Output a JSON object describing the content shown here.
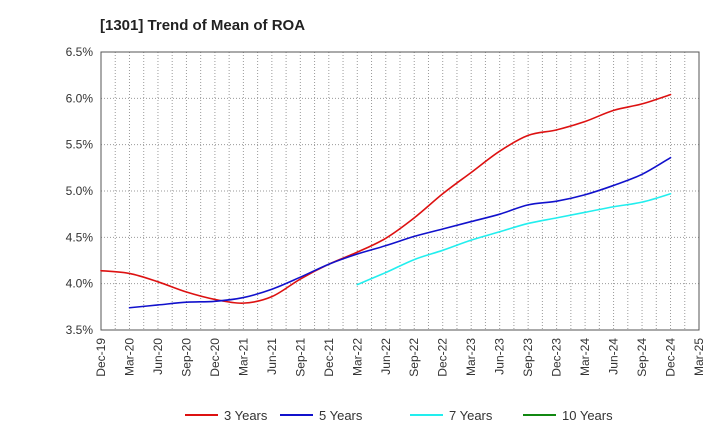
{
  "chart_data": {
    "type": "line",
    "title": "[1301]  Trend of Mean of ROA",
    "xlabel": "",
    "ylabel": "",
    "ylim": [
      3.5,
      6.5
    ],
    "ytick_values": [
      3.5,
      4.0,
      4.5,
      5.0,
      5.5,
      6.0,
      6.5
    ],
    "ytick_labels": [
      "3.5%",
      "4.0%",
      "4.5%",
      "5.0%",
      "5.5%",
      "6.0%",
      "6.5%"
    ],
    "xtick_labels": [
      "Dec-19",
      "Mar-20",
      "Jun-20",
      "Sep-20",
      "Dec-20",
      "Mar-21",
      "Jun-21",
      "Sep-21",
      "Dec-21",
      "Mar-22",
      "Jun-22",
      "Sep-22",
      "Dec-22",
      "Mar-23",
      "Jun-23",
      "Sep-23",
      "Dec-23",
      "Mar-24",
      "Jun-24",
      "Sep-24",
      "Dec-24",
      "Mar-25"
    ],
    "grid": true,
    "legend_position": "bottom",
    "series": [
      {
        "name": "3 Years",
        "color": "#dd1111",
        "start_index": 0,
        "values": [
          4.14,
          4.11,
          4.02,
          3.91,
          3.83,
          3.79,
          3.86,
          4.05,
          4.21,
          4.34,
          4.49,
          4.71,
          4.97,
          5.2,
          5.43,
          5.6,
          5.66,
          5.75,
          5.87,
          5.94,
          6.04
        ]
      },
      {
        "name": "5 Years",
        "color": "#1111cc",
        "start_index": 1,
        "values": [
          3.74,
          3.77,
          3.8,
          3.81,
          3.85,
          3.94,
          4.07,
          4.21,
          4.32,
          4.41,
          4.51,
          4.59,
          4.67,
          4.75,
          4.85,
          4.89,
          4.96,
          5.06,
          5.18,
          5.36
        ]
      },
      {
        "name": "7 Years",
        "color": "#22eeee",
        "start_index": 9,
        "values": [
          3.99,
          4.12,
          4.26,
          4.36,
          4.47,
          4.56,
          4.65,
          4.71,
          4.77,
          4.83,
          4.88,
          4.97
        ]
      },
      {
        "name": "10 Years",
        "color": "#118811",
        "start_index": 0,
        "values": []
      }
    ]
  }
}
